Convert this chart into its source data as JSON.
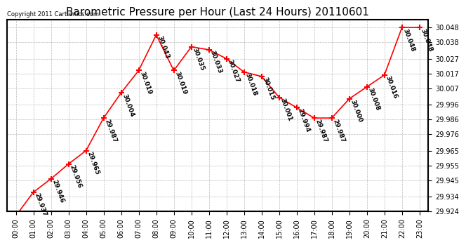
{
  "title": "Barometric Pressure per Hour (Last 24 Hours) 20110601",
  "copyright": "Copyright 2011 Cartronics.com",
  "hours": [
    "00:00",
    "01:00",
    "02:00",
    "03:00",
    "04:00",
    "05:00",
    "06:00",
    "07:00",
    "08:00",
    "09:00",
    "10:00",
    "11:00",
    "12:00",
    "13:00",
    "14:00",
    "15:00",
    "16:00",
    "17:00",
    "18:00",
    "19:00",
    "20:00",
    "21:00",
    "22:00",
    "23:00"
  ],
  "values": [
    29.921,
    29.937,
    29.946,
    29.956,
    29.965,
    29.987,
    30.004,
    30.019,
    30.043,
    30.019,
    30.035,
    30.033,
    30.027,
    30.018,
    30.015,
    30.001,
    29.994,
    29.987,
    29.987,
    30.0,
    30.008,
    30.016,
    30.048,
    30.048
  ],
  "ylim_min": 29.924,
  "ylim_max": 30.0535,
  "yticks": [
    29.924,
    29.934,
    29.945,
    29.955,
    29.965,
    29.976,
    29.986,
    29.996,
    30.007,
    30.017,
    30.027,
    30.038,
    30.048
  ],
  "line_color": "red",
  "marker": "+",
  "marker_color": "red",
  "marker_size": 6,
  "grid_color": "#bbbbbb",
  "bg_color": "white",
  "title_fontsize": 11,
  "label_fontsize": 7,
  "annotation_fontsize": 6.5,
  "annotation_rotation": -70
}
